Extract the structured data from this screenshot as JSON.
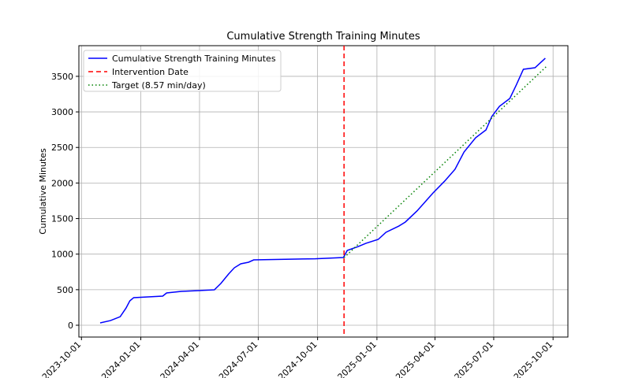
{
  "chart_data": {
    "type": "line",
    "title": "Cumulative Strength Training Minutes",
    "ylabel": "Cumulative Minutes",
    "xlim": [
      "2023-09-27",
      "2025-10-24"
    ],
    "xticks": [
      "2023-10-01",
      "2024-01-01",
      "2024-04-01",
      "2024-07-01",
      "2024-10-01",
      "2025-01-01",
      "2025-04-01",
      "2025-07-01",
      "2025-10-01"
    ],
    "ylim": [
      -166,
      3931
    ],
    "yticks": [
      0,
      500,
      1000,
      1500,
      2000,
      2500,
      3000,
      3500
    ],
    "grid": true,
    "legend": "upper left",
    "series": [
      {
        "name": "Cumulative Strength Training Minutes",
        "color": "#0000ff",
        "style": "solid",
        "x": [
          "2023-10-30",
          "2023-11-15",
          "2023-11-30",
          "2023-12-09",
          "2023-12-15",
          "2023-12-21",
          "2024-02-04",
          "2024-02-10",
          "2024-03-04",
          "2024-04-24",
          "2024-05-04",
          "2024-05-16",
          "2024-05-25",
          "2024-06-04",
          "2024-06-16",
          "2024-06-24",
          "2024-09-27",
          "2024-11-10",
          "2024-11-16",
          "2024-12-03",
          "2024-12-15",
          "2025-01-03",
          "2025-01-15",
          "2025-02-04",
          "2025-02-14",
          "2025-03-04",
          "2025-03-16",
          "2025-03-29",
          "2025-04-16",
          "2025-05-02",
          "2025-05-16",
          "2025-06-03",
          "2025-06-19",
          "2025-06-28",
          "2025-07-10",
          "2025-07-26",
          "2025-08-05",
          "2025-08-16",
          "2025-09-03",
          "2025-09-19"
        ],
        "values": [
          33,
          66,
          120,
          240,
          343,
          388,
          410,
          454,
          476,
          498,
          587,
          720,
          808,
          864,
          886,
          919,
          935,
          952,
          1052,
          1107,
          1152,
          1207,
          1307,
          1395,
          1451,
          1606,
          1728,
          1860,
          2027,
          2193,
          2436,
          2636,
          2746,
          2935,
          3079,
          3189,
          3378,
          3599,
          3621,
          3754
        ]
      },
      {
        "name": "Intervention Date",
        "color": "#ff0000",
        "style": "vline",
        "x": "2024-11-11"
      },
      {
        "name": "Target (8.57 min/day)",
        "color": "#008000",
        "style": "dotted",
        "x": [
          "2024-11-11",
          "2025-09-21"
        ],
        "values": [
          950,
          3641
        ]
      }
    ]
  }
}
